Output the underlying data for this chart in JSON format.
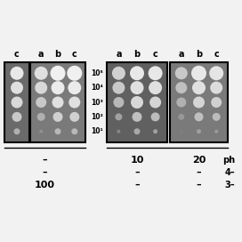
{
  "background_color": "#f2f2f2",
  "text_color": "#000000",
  "col_labels_left1": [
    "c"
  ],
  "col_labels_left2": [
    "a",
    "b",
    "c"
  ],
  "col_labels_right1": [
    "a",
    "b",
    "c"
  ],
  "col_labels_right2": [
    "a",
    "b",
    "c"
  ],
  "dilution_labels": [
    "10⁵",
    "10⁴",
    "10³",
    "10²",
    "10¹"
  ],
  "lp1_rows": [
    {
      "sizes": [
        7.5
      ],
      "colors": [
        "#e8e8e8"
      ]
    },
    {
      "sizes": [
        7.0
      ],
      "colors": [
        "#e0e0e0"
      ]
    },
    {
      "sizes": [
        6.5
      ],
      "colors": [
        "#d8d8d8"
      ]
    },
    {
      "sizes": [
        5.5
      ],
      "colors": [
        "#c8c8c8"
      ]
    },
    {
      "sizes": [
        3.5
      ],
      "colors": [
        "#b0b0b0"
      ]
    }
  ],
  "lp2_rows": [
    {
      "sizes": [
        7.5,
        8.5,
        8.5
      ],
      "colors": [
        "#e0e0e0",
        "#f0f0f0",
        "#f0f0f0"
      ]
    },
    {
      "sizes": [
        7.0,
        7.5,
        7.5
      ],
      "colors": [
        "#d8d8d8",
        "#ebebeb",
        "#ebebeb"
      ]
    },
    {
      "sizes": [
        6.0,
        6.5,
        6.5
      ],
      "colors": [
        "#c8c8c8",
        "#e0e0e0",
        "#e0e0e0"
      ]
    },
    {
      "sizes": [
        4.5,
        5.5,
        5.5
      ],
      "colors": [
        "#b0b0b0",
        "#d0d0d0",
        "#d0d0d0"
      ]
    },
    {
      "sizes": [
        2.0,
        3.5,
        3.5
      ],
      "colors": [
        "#909090",
        "#b8b8b8",
        "#b8b8b8"
      ]
    }
  ],
  "rp1_rows": [
    {
      "sizes": [
        7.5,
        8.0,
        8.0
      ],
      "colors": [
        "#d0d0d0",
        "#e8e8e8",
        "#e8e8e8"
      ]
    },
    {
      "sizes": [
        7.0,
        7.5,
        7.5
      ],
      "colors": [
        "#c8c8c8",
        "#e0e0e0",
        "#e0e0e0"
      ]
    },
    {
      "sizes": [
        6.0,
        7.0,
        6.5
      ],
      "colors": [
        "#b8b8b8",
        "#d8d8d8",
        "#d5d5d5"
      ]
    },
    {
      "sizes": [
        4.0,
        5.5,
        5.0
      ],
      "colors": [
        "#a0a0a0",
        "#c0c0c0",
        "#bcbcbc"
      ]
    },
    {
      "sizes": [
        2.0,
        3.5,
        2.5
      ],
      "colors": [
        "#888888",
        "#a8a8a8",
        "#a0a0a0"
      ]
    }
  ],
  "rp2_rows": [
    {
      "sizes": [
        7.0,
        8.5,
        8.0
      ],
      "colors": [
        "#c8c8c8",
        "#e8e8e8",
        "#e5e5e5"
      ]
    },
    {
      "sizes": [
        6.5,
        7.5,
        7.0
      ],
      "colors": [
        "#c0c0c0",
        "#e0e0e0",
        "#dcdcdc"
      ]
    },
    {
      "sizes": [
        5.5,
        6.5,
        6.0
      ],
      "colors": [
        "#b0b0b0",
        "#d5d5d5",
        "#d0d0d0"
      ]
    },
    {
      "sizes": [
        3.5,
        5.0,
        4.5
      ],
      "colors": [
        "#989898",
        "#c0c0c0",
        "#bcbcbc"
      ]
    },
    {
      "sizes": [
        1.5,
        2.5,
        2.0
      ],
      "colors": [
        "#808080",
        "#a0a0a0",
        "#9c9c9c"
      ]
    }
  ]
}
